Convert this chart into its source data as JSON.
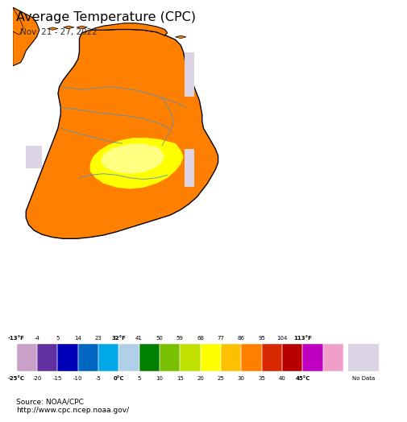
{
  "title": "Average Temperature (CPC)",
  "subtitle": "Nov. 21 - 27, 2022",
  "background_color": "#ffffff",
  "ocean_color": "#b8eef8",
  "source_text": "Source: NOAA/CPC\nhttp://www.cpc.ncep.noaa.gov/",
  "colorbar_colors": [
    "#c8a0c8",
    "#6030a0",
    "#0000b8",
    "#0068c0",
    "#00a8e8",
    "#b0d0e8",
    "#008000",
    "#78c000",
    "#c0e000",
    "#ffff00",
    "#ffc000",
    "#ff8000",
    "#d82800",
    "#b80000",
    "#c000c0",
    "#f0a0c8"
  ],
  "colorbar_labels_top": [
    "-13°F",
    "-4",
    "5",
    "14",
    "23",
    "32°F",
    "41",
    "50",
    "59",
    "68",
    "77",
    "86",
    "95",
    "104",
    "113°F"
  ],
  "colorbar_labels_bottom": [
    "-25°C",
    "-20",
    "-15",
    "-10",
    "-5",
    "0°C",
    "5",
    "10",
    "15",
    "20",
    "25",
    "30",
    "35",
    "40",
    "45°C"
  ],
  "no_data_color": "#dcd4e4",
  "no_data_label": "No Data",
  "cb_bg_color": "#e8e8e8",
  "sri_lanka_main_color": "#ff8000",
  "sri_lanka_hot1_color": "#ffc000",
  "sri_lanka_hot2_color": "#ffff00",
  "sri_lanka_hotcore_color": "#ffff80",
  "sri_lanka_nodata_color": "#dcd4e4",
  "sri_lanka_border_color": "#000000",
  "province_border_color": "#5090c0",
  "india_color": "#ff8000",
  "xlim": [
    79.3,
    82.2
  ],
  "ylim": [
    5.6,
    10.15
  ]
}
